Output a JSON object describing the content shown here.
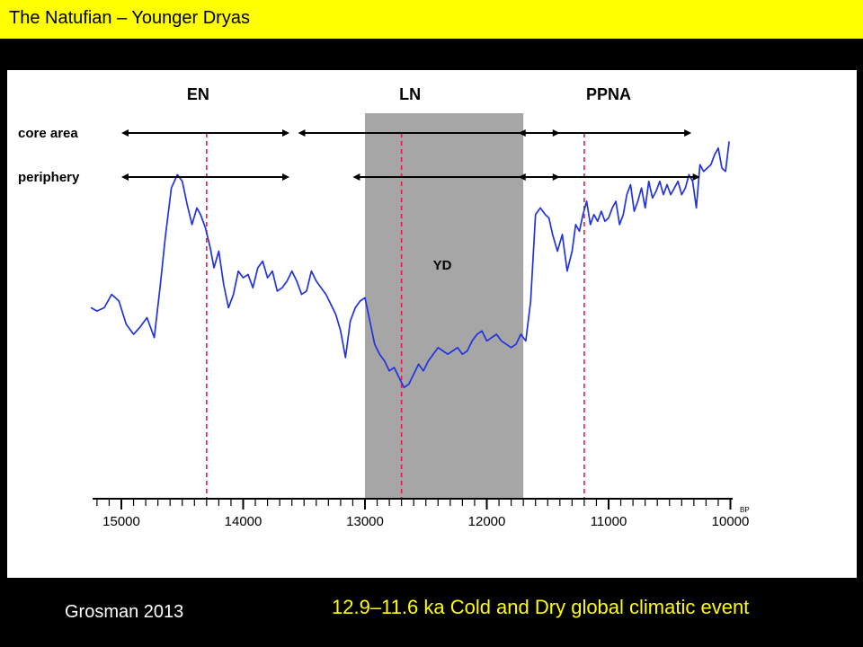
{
  "slide": {
    "title": "The Natufian – Younger Dryas",
    "credit": "Grosman 2013",
    "caption": "12.9–11.6 ka Cold and Dry global climatic event"
  },
  "colors": {
    "title_bar": "#ffff00",
    "background": "#000000",
    "series_line": "#2233dd",
    "yd_band": "#a6a6a6",
    "dashed_marker": "#e8174f",
    "caption_text": "#ffff00"
  },
  "chart_data": {
    "type": "line",
    "title": "",
    "xlabel": "BP",
    "ylabel": "",
    "x_reversed": true,
    "xlim": [
      15300,
      9900
    ],
    "ylim": [
      0,
      1
    ],
    "y_axis_shown": false,
    "x_ticks": [
      15000,
      14000,
      13000,
      12000,
      11000,
      10000
    ],
    "x_tick_labels": [
      "15000",
      "14000",
      "13000",
      "12000",
      "11000",
      "10000"
    ],
    "minor_tick_step": 100,
    "period_labels": [
      {
        "label": "EN",
        "x": 14370
      },
      {
        "label": "LN",
        "x": 12630
      },
      {
        "label": "PPNA",
        "x": 11000
      }
    ],
    "band": {
      "label": "YD",
      "from": 13000,
      "to": 11700
    },
    "dashed_markers": [
      14300,
      12700,
      11200
    ],
    "row_labels": [
      "core area",
      "periphery"
    ],
    "ranges": [
      {
        "row": "core area",
        "from": 15000,
        "to": 13620
      },
      {
        "row": "core area",
        "from": 13550,
        "to": 11400
      },
      {
        "row": "core area",
        "from": 11740,
        "to": 10320
      },
      {
        "row": "periphery",
        "from": 15000,
        "to": 13620
      },
      {
        "row": "periphery",
        "from": 13100,
        "to": 11400
      },
      {
        "row": "periphery",
        "from": 11740,
        "to": 10250
      }
    ],
    "series": [
      {
        "x": [
          15250,
          15200,
          15140,
          15080,
          15020,
          14960,
          14900,
          14850,
          14790,
          14730,
          14680,
          14640,
          14590,
          14540,
          14500,
          14460,
          14420,
          14380,
          14350,
          14310,
          14270,
          14240,
          14200,
          14160,
          14120,
          14080,
          14040,
          14000,
          13960,
          13920,
          13880,
          13840,
          13800,
          13760,
          13720,
          13680,
          13640,
          13600,
          13560,
          13520,
          13480,
          13440,
          13400,
          13360,
          13320,
          13280,
          13240,
          13200,
          13160,
          13120,
          13080,
          13040,
          13000,
          12960,
          12920,
          12880,
          12840,
          12800,
          12760,
          12720,
          12680,
          12640,
          12600,
          12560,
          12520,
          12480,
          12440,
          12400,
          12360,
          12320,
          12280,
          12240,
          12200,
          12160,
          12120,
          12080,
          12040,
          12000,
          11960,
          11920,
          11880,
          11840,
          11800,
          11760,
          11720,
          11680,
          11640,
          11600,
          11560,
          11520,
          11490,
          11460,
          11420,
          11380,
          11340,
          11300,
          11270,
          11240,
          11210,
          11180,
          11150,
          11120,
          11090,
          11060,
          11030,
          11000,
          10970,
          10940,
          10910,
          10880,
          10850,
          10820,
          10790,
          10760,
          10730,
          10700,
          10670,
          10640,
          10610,
          10580,
          10550,
          10520,
          10490,
          10460,
          10430,
          10400,
          10370,
          10340,
          10310,
          10280,
          10250,
          10220,
          10190,
          10160,
          10130,
          10100,
          10070,
          10040,
          10010
        ],
        "y": [
          0.38,
          0.37,
          0.38,
          0.42,
          0.4,
          0.33,
          0.3,
          0.32,
          0.35,
          0.29,
          0.45,
          0.59,
          0.74,
          0.78,
          0.76,
          0.69,
          0.63,
          0.68,
          0.66,
          0.62,
          0.56,
          0.5,
          0.55,
          0.45,
          0.38,
          0.42,
          0.49,
          0.47,
          0.48,
          0.44,
          0.5,
          0.52,
          0.47,
          0.49,
          0.43,
          0.44,
          0.46,
          0.49,
          0.46,
          0.42,
          0.43,
          0.49,
          0.46,
          0.44,
          0.42,
          0.39,
          0.36,
          0.31,
          0.23,
          0.34,
          0.38,
          0.4,
          0.41,
          0.34,
          0.27,
          0.24,
          0.22,
          0.19,
          0.2,
          0.17,
          0.14,
          0.15,
          0.18,
          0.21,
          0.19,
          0.22,
          0.24,
          0.26,
          0.25,
          0.24,
          0.25,
          0.26,
          0.24,
          0.25,
          0.28,
          0.3,
          0.31,
          0.28,
          0.29,
          0.3,
          0.28,
          0.27,
          0.26,
          0.27,
          0.3,
          0.28,
          0.4,
          0.66,
          0.68,
          0.66,
          0.65,
          0.6,
          0.55,
          0.6,
          0.49,
          0.55,
          0.63,
          0.61,
          0.66,
          0.7,
          0.63,
          0.66,
          0.64,
          0.67,
          0.64,
          0.65,
          0.68,
          0.7,
          0.63,
          0.66,
          0.72,
          0.75,
          0.67,
          0.7,
          0.74,
          0.68,
          0.76,
          0.71,
          0.73,
          0.76,
          0.72,
          0.75,
          0.72,
          0.74,
          0.76,
          0.72,
          0.74,
          0.78,
          0.76,
          0.68,
          0.81,
          0.79,
          0.8,
          0.81,
          0.84,
          0.86,
          0.8,
          0.79,
          0.88
        ]
      }
    ]
  }
}
